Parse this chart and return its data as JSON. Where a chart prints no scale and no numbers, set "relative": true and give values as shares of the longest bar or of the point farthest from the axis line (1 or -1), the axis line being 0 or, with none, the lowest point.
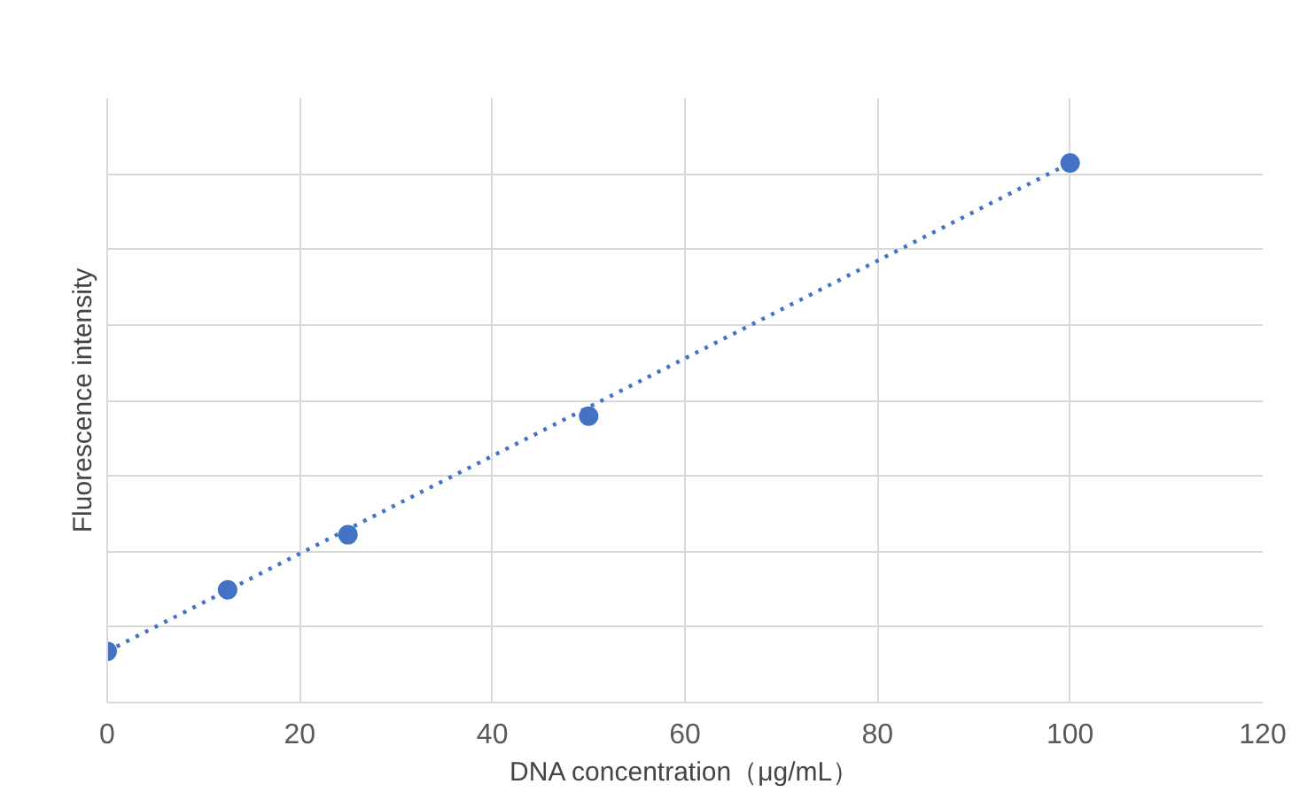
{
  "chart_data": {
    "type": "scatter",
    "relative": true,
    "xlabel": "DNA concentration（μg/mL）",
    "ylabel": "Fluorescence intensity",
    "xlim": [
      0,
      120
    ],
    "xticks": [
      0,
      20,
      40,
      60,
      80,
      100,
      120
    ],
    "grid": true,
    "tick_labels": "x",
    "series": [
      {
        "color": "#4472c4",
        "marker": "circle",
        "x": [
          0,
          12.5,
          25,
          50,
          100
        ],
        "values": [
          0.095,
          0.209,
          0.311,
          0.531,
          1.0
        ]
      },
      {
        "type": "line",
        "color": "#4472c4",
        "line_style": "dotted",
        "marker": "none",
        "x": [
          0,
          100
        ],
        "values": [
          0.095,
          1.0
        ]
      }
    ]
  }
}
